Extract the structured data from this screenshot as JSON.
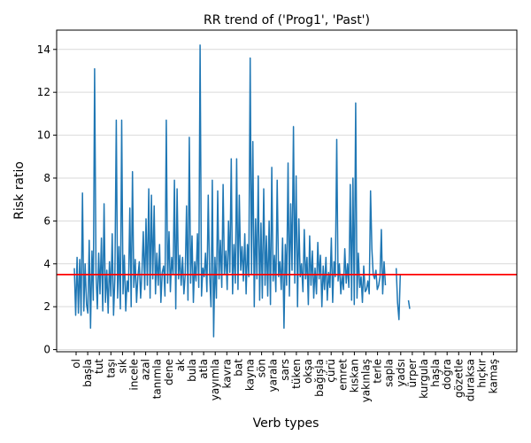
{
  "chart_data": {
    "type": "line",
    "title": "RR trend of ('Prog1', 'Past')",
    "xlabel": "Verb types",
    "ylabel": "Risk ratio",
    "ylim": [
      -0.1,
      14.9
    ],
    "y_ticks": [
      0,
      2,
      4,
      6,
      8,
      10,
      12,
      14
    ],
    "grid": "horizontal",
    "x_tick_labels": [
      "ol",
      "başla",
      "tut",
      "taşı",
      "sık",
      "incele",
      "azal",
      "tanımla",
      "dene",
      "ak",
      "bula",
      "atla",
      "yayımla",
      "kavra",
      "bat",
      "kayna",
      "sön",
      "yarala",
      "sars",
      "tüken",
      "okşa",
      "bağışla",
      "çürü",
      "emret",
      "kıskan",
      "yakınlaş",
      "terle",
      "sapla",
      "yadsı",
      "ürper",
      "kurgula",
      "haşla",
      "doğra",
      "gözetle",
      "duraksa",
      "hıçkır",
      "kamaş"
    ],
    "reference_line": {
      "y": 3.5,
      "color": "#ff0000"
    },
    "series": [
      {
        "color": "#1f77b4",
        "values": [
          3.8,
          1.6,
          4.3,
          1.7,
          4.2,
          1.6,
          7.3,
          1.8,
          4.0,
          2.1,
          1.7,
          5.1,
          1.0,
          4.6,
          2.3,
          13.1,
          3.5,
          1.9,
          4.5,
          2.6,
          5.2,
          1.8,
          6.8,
          2.2,
          3.7,
          1.7,
          4.1,
          2.5,
          5.4,
          1.6,
          3.3,
          10.7,
          2.4,
          4.8,
          1.9,
          10.7,
          2.6,
          4.4,
          1.8,
          3.2,
          2.7,
          6.6,
          2.0,
          8.3,
          2.9,
          4.2,
          2.2,
          3.4,
          4.1,
          2.4,
          3.6,
          5.5,
          2.8,
          6.1,
          3.0,
          7.5,
          2.4,
          7.2,
          3.3,
          6.7,
          2.6,
          4.5,
          3.0,
          4.9,
          2.2,
          3.6,
          3.9,
          2.5,
          10.7,
          3.1,
          5.5,
          2.7,
          4.3,
          3.5,
          7.9,
          1.9,
          7.5,
          3.3,
          4.4,
          3.0,
          4.3,
          2.6,
          3.5,
          6.7,
          2.3,
          9.9,
          3.1,
          5.3,
          2.2,
          4.1,
          3.2,
          5.4,
          2.9,
          14.2,
          2.5,
          3.8,
          3.4,
          4.5,
          2.7,
          7.2,
          3.6,
          2.0,
          7.9,
          0.6,
          4.3,
          2.4,
          7.4,
          3.3,
          5.1,
          2.9,
          7.7,
          3.5,
          4.6,
          2.8,
          6.0,
          3.6,
          8.9,
          2.6,
          4.9,
          3.1,
          8.9,
          2.8,
          7.2,
          3.7,
          4.8,
          3.2,
          5.4,
          2.6,
          4.9,
          3.4,
          13.6,
          3.5,
          9.7,
          2.0,
          6.1,
          3.3,
          8.1,
          2.3,
          5.9,
          2.4,
          7.5,
          3.0,
          5.3,
          2.5,
          6.0,
          2.1,
          8.5,
          3.2,
          4.4,
          2.7,
          7.9,
          3.4,
          4.1,
          2.8,
          5.2,
          1.0,
          4.9,
          3.0,
          8.7,
          2.5,
          6.8,
          3.7,
          10.4,
          3.1,
          8.1,
          2.0,
          6.1,
          3.4,
          4.0,
          2.7,
          5.6,
          3.3,
          4.3,
          2.1,
          5.3,
          3.0,
          4.6,
          2.4,
          3.8,
          2.6,
          5.0,
          3.3,
          4.4,
          2.0,
          3.9,
          2.8,
          4.3,
          2.3,
          3.6,
          2.9,
          5.2,
          2.2,
          4.1,
          3.4,
          9.8,
          3.2,
          4.0,
          2.6,
          3.5,
          2.8,
          4.7,
          3.1,
          4.0,
          2.9,
          7.7,
          2.3,
          8.0,
          2.1,
          11.5,
          2.4,
          4.5,
          2.9,
          3.4,
          2.2,
          3.9,
          2.7,
          2.8,
          3.2,
          2.6,
          7.4,
          4.7,
          3.5,
          3.3,
          3.7,
          2.8,
          3.0,
          3.4,
          5.6,
          2.6,
          4.1,
          3.0,
          null,
          null,
          null,
          null,
          null,
          null,
          null,
          3.8,
          2.2,
          1.4,
          3.5,
          null,
          null,
          null,
          null,
          null,
          2.3,
          1.9
        ]
      }
    ]
  }
}
